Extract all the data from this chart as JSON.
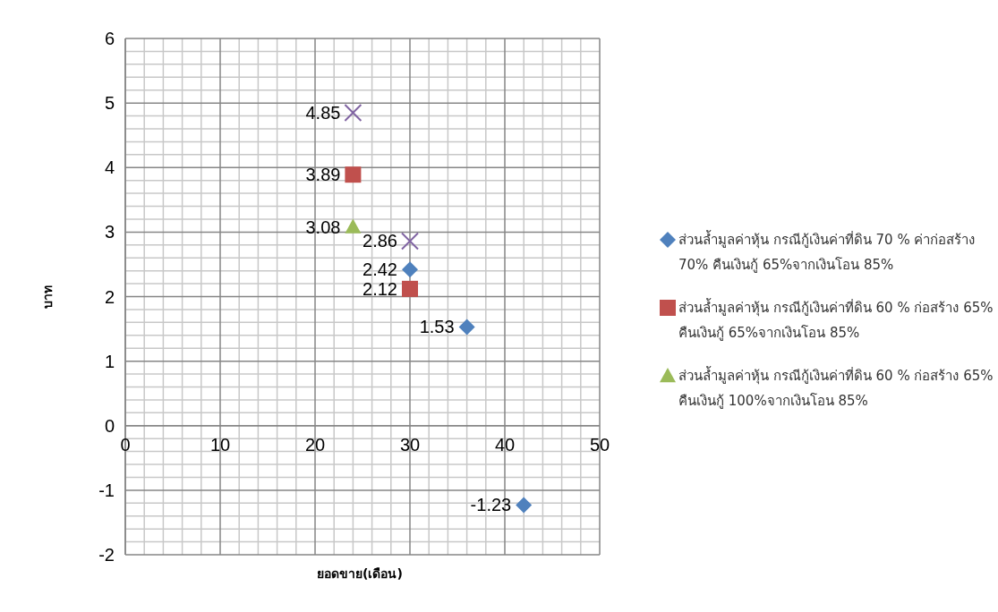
{
  "chart_data": {
    "type": "scatter",
    "xlabel": "ยอดขาย(เดือน)",
    "ylabel": "บาท",
    "xlim": [
      0,
      50
    ],
    "xticks": [
      0,
      10,
      20,
      30,
      40,
      50
    ],
    "ylim": [
      -2,
      6
    ],
    "yticks": [
      -2,
      -1,
      0,
      1,
      2,
      3,
      4,
      5,
      6
    ],
    "grid": true,
    "legend": "right",
    "data_labels": true,
    "series": [
      {
        "name": "ส่วนล้ำมูลค่าหุ้น กรณีกู้เงินค่าที่ดิน 70 % ค่าก่อสร้าง 70% คืนเงินกู้ 65%จากเงินโอน 85%",
        "color": "#4f81bd",
        "marker": "diamond",
        "x": [
          30,
          36,
          42
        ],
        "values": [
          2.42,
          1.53,
          -1.23
        ]
      },
      {
        "name": "ส่วนล้ำมูลค่าหุ้น กรณีกู้เงินค่าที่ดิน 60 % ก่อสร้าง 65% คืนเงินกู้ 65%จากเงินโอน 85%",
        "color": "#c0504d",
        "marker": "square",
        "x": [
          24,
          30
        ],
        "values": [
          3.89,
          2.12
        ]
      },
      {
        "name": "ส่วนล้ำมูลค่าหุ้น กรณีกู้เงินค่าที่ดิน 60 % ก่อสร้าง 65% คืนเงินกู้ 100%จากเงินโอน 85%",
        "color": "#9bbb59",
        "marker": "triangle",
        "x": [
          24
        ],
        "values": [
          3.08
        ]
      },
      {
        "color": "#8064a2",
        "marker": "cross",
        "x": [
          24,
          30
        ],
        "values": [
          4.85,
          2.86
        ]
      }
    ]
  }
}
